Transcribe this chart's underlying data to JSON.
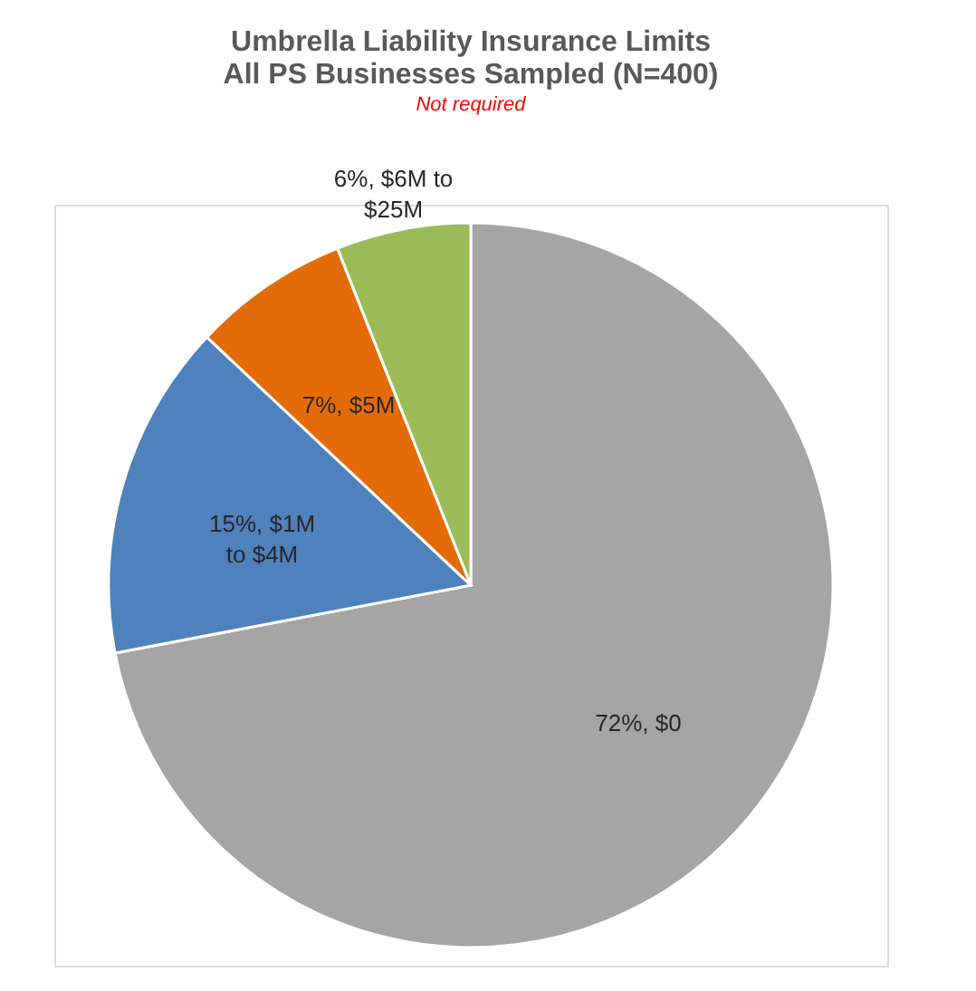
{
  "chart_data": {
    "type": "pie",
    "title": [
      "Umbrella Liability Insurance Limits",
      "All PS Businesses Sampled (N=400)"
    ],
    "subtitle": "Not required",
    "categories": [
      "$0",
      "$1M to $4M",
      "$5M",
      "$6M to $25M"
    ],
    "values": [
      72,
      15,
      7,
      6
    ],
    "colors": [
      "#a5a5a5",
      "#4f81bd",
      "#e36c09",
      "#9bbb59"
    ],
    "value_labels": [
      "72%",
      "15%",
      "7%",
      "6%"
    ],
    "legend": false
  }
}
